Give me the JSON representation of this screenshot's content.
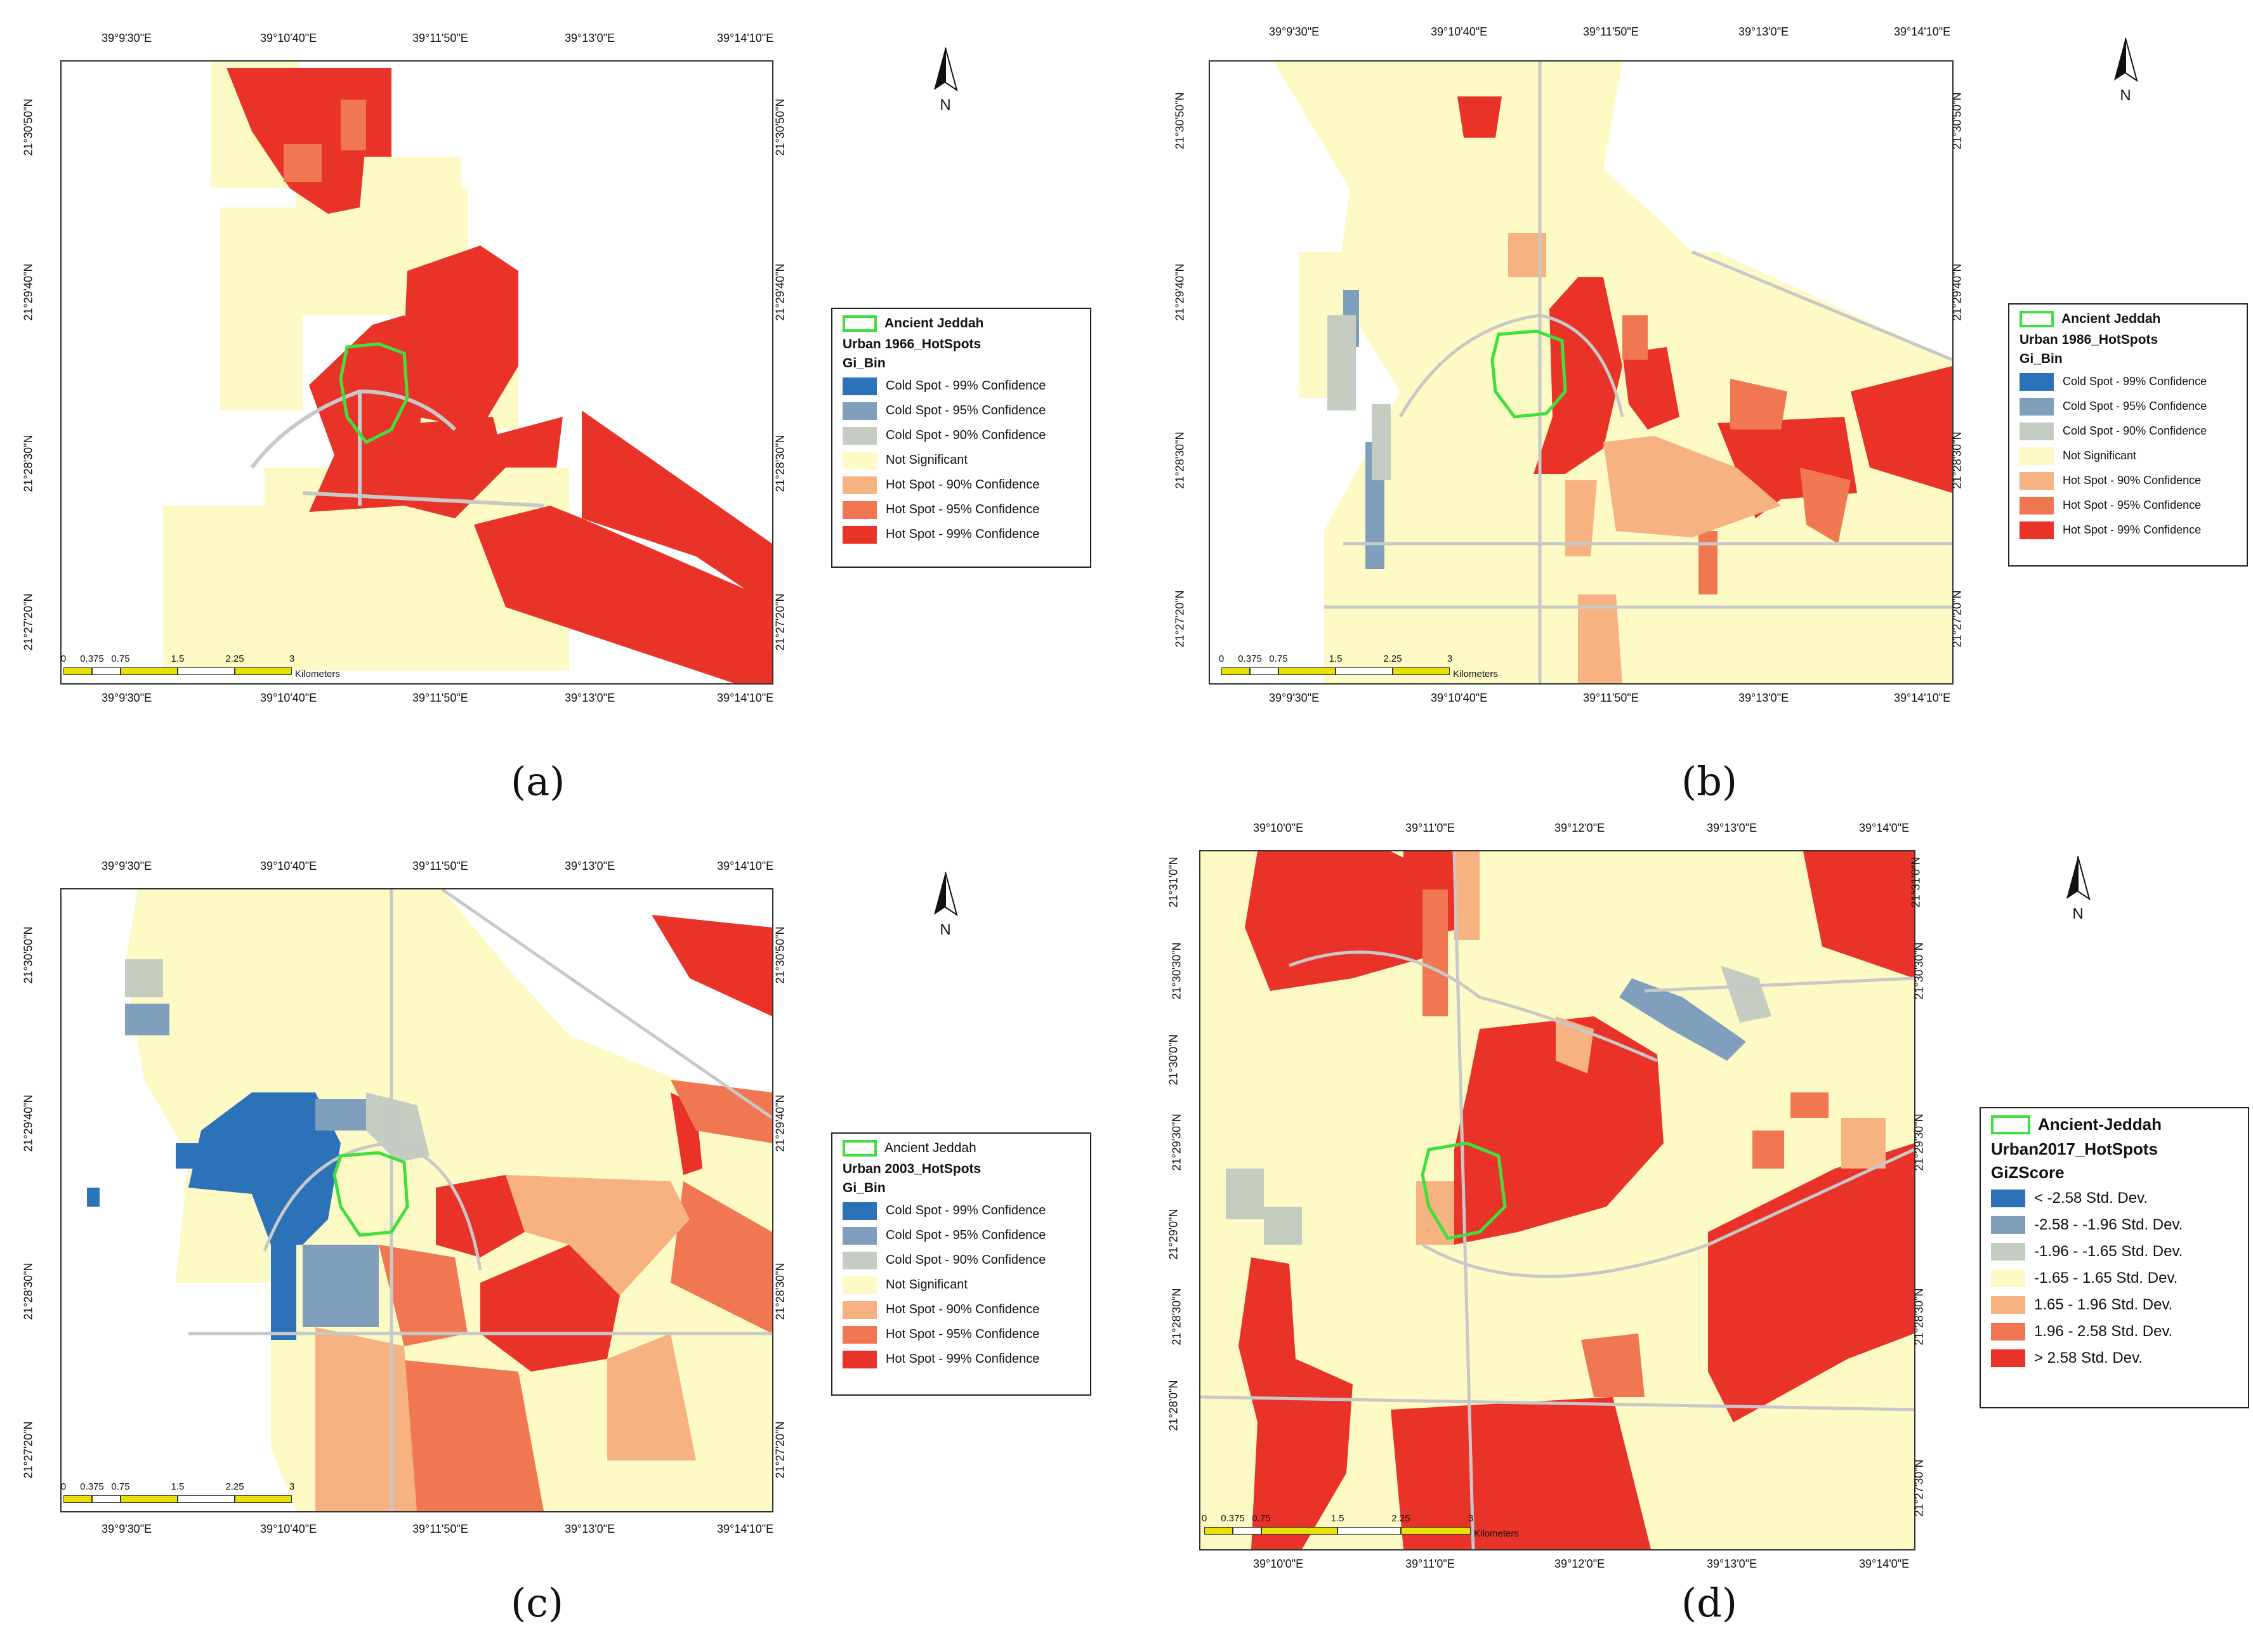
{
  "colors": {
    "cold99": "#2b72b9",
    "cold95": "#7f9fbd",
    "cold90": "#c5cdc3",
    "notsig": "#fdfac6",
    "hot90": "#f6b281",
    "hot95": "#f17752",
    "hot99": "#ea3328",
    "boundary": "#3ee03e",
    "scale_yellow": "#e8e000",
    "road": "#c8c8c8"
  },
  "north_arrow": {
    "letter": "N"
  },
  "scale_bar": {
    "ticks": [
      "0",
      "0.375",
      "0.75",
      "1.5",
      "2.25",
      "3"
    ],
    "unit": "Kilometers"
  },
  "panels": [
    {
      "caption": "(a)",
      "lon_labels": [
        "39°9'30\"E",
        "39°10'40\"E",
        "39°11'50\"E",
        "39°13'0\"E",
        "39°14'10\"E"
      ],
      "lat_labels": [
        "21°30'50\"N",
        "21°29'40\"N",
        "21°28'30\"N",
        "21°27'20\"N"
      ],
      "legend": {
        "boundary_label": "Ancient Jeddah",
        "layer_title": "Urban 1966_HotSpots",
        "field_title": "Gi_Bin",
        "items": [
          {
            "label": "Cold Spot - 99% Confidence",
            "color": "#2b72b9"
          },
          {
            "label": "Cold Spot - 95% Confidence",
            "color": "#7f9fbd"
          },
          {
            "label": "Cold Spot - 90% Confidence",
            "color": "#c5cdc3"
          },
          {
            "label": "Not Significant",
            "color": "#fdfac6"
          },
          {
            "label": "Hot Spot - 90% Confidence",
            "color": "#f6b281"
          },
          {
            "label": "Hot Spot - 95% Confidence",
            "color": "#f17752"
          },
          {
            "label": "Hot Spot - 99% Confidence",
            "color": "#ea3328"
          }
        ]
      }
    },
    {
      "caption": "(b)",
      "lon_labels": [
        "39°9'30\"E",
        "39°10'40\"E",
        "39°11'50\"E",
        "39°13'0\"E",
        "39°14'10\"E"
      ],
      "lat_labels": [
        "21°30'50\"N",
        "21°29'40\"N",
        "21°28'30\"N",
        "21°27'20\"N"
      ],
      "legend": {
        "boundary_label": "Ancient Jeddah",
        "layer_title": "Urban 1986_HotSpots",
        "field_title": "Gi_Bin",
        "items": [
          {
            "label": "Cold Spot - 99% Confidence",
            "color": "#2b72b9"
          },
          {
            "label": "Cold Spot - 95% Confidence",
            "color": "#7f9fbd"
          },
          {
            "label": "Cold Spot - 90% Confidence",
            "color": "#c5cdc3"
          },
          {
            "label": "Not Significant",
            "color": "#fdfac6"
          },
          {
            "label": "Hot Spot - 90% Confidence",
            "color": "#f6b281"
          },
          {
            "label": "Hot Spot - 95% Confidence",
            "color": "#f17752"
          },
          {
            "label": "Hot Spot - 99% Confidence",
            "color": "#ea3328"
          }
        ]
      }
    },
    {
      "caption": "(c)",
      "lon_labels": [
        "39°9'30\"E",
        "39°10'40\"E",
        "39°11'50\"E",
        "39°13'0\"E",
        "39°14'10\"E"
      ],
      "lat_labels": [
        "21°30'50\"N",
        "21°29'40\"N",
        "21°28'30\"N",
        "21°27'20\"N"
      ],
      "legend": {
        "boundary_label": "Ancient Jeddah",
        "layer_title": "Urban 2003_HotSpots",
        "field_title": "Gi_Bin",
        "items": [
          {
            "label": "Cold Spot - 99% Confidence",
            "color": "#2b72b9"
          },
          {
            "label": "Cold Spot - 95% Confidence",
            "color": "#7f9fbd"
          },
          {
            "label": "Cold Spot - 90% Confidence",
            "color": "#c5cdc3"
          },
          {
            "label": "Not Significant",
            "color": "#fdfac6"
          },
          {
            "label": "Hot Spot - 90% Confidence",
            "color": "#f6b281"
          },
          {
            "label": "Hot Spot - 95% Confidence",
            "color": "#f17752"
          },
          {
            "label": "Hot Spot - 99% Confidence",
            "color": "#ea3328"
          }
        ]
      }
    },
    {
      "caption": "(d)",
      "lon_labels": [
        "39°10'0\"E",
        "39°11'0\"E",
        "39°12'0\"E",
        "39°13'0\"E",
        "39°14'0\"E"
      ],
      "lat_labels": [
        "21°31'0\"N",
        "21°30'30\"N",
        "21°30'0\"N",
        "21°29'30\"N",
        "21°29'0\"N",
        "21°28'30\"N",
        "21°28'0\"N",
        "21°27'30\"N"
      ],
      "legend": {
        "boundary_label": "Ancient-Jeddah",
        "layer_title": "Urban2017_HotSpots",
        "field_title": "GiZScore",
        "items": [
          {
            "label": "< -2.58 Std. Dev.",
            "color": "#2b72b9"
          },
          {
            "label": "-2.58 - -1.96 Std. Dev.",
            "color": "#7f9fbd"
          },
          {
            "label": "-1.96 - -1.65 Std. Dev.",
            "color": "#c5cdc3"
          },
          {
            "label": "-1.65 - 1.65 Std. Dev.",
            "color": "#fdfac6"
          },
          {
            "label": "1.65 - 1.96 Std. Dev.",
            "color": "#f6b281"
          },
          {
            "label": "1.96 - 2.58 Std. Dev.",
            "color": "#f17752"
          },
          {
            "label": "> 2.58 Std. Dev.",
            "color": "#ea3328"
          }
        ]
      }
    }
  ]
}
